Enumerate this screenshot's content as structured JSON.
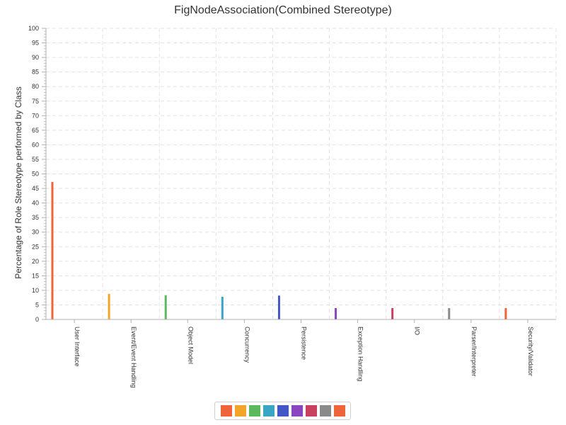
{
  "chart_data": {
    "type": "bar",
    "title": "FigNodeAssociation(Combined Stereotype)",
    "xlabel": "",
    "ylabel": "Percentage of Role Stereotype performed by Class",
    "ylim": [
      0,
      100
    ],
    "y_major_step": 5,
    "y_minor_step": 1,
    "grid": true,
    "legend_position": "bottom",
    "categories": [
      "User Interface",
      "Event/Event Handling",
      "Object Model",
      "Concurrency",
      "Persistence",
      "Exception Handling",
      "I/O",
      "Parser/Interpreter",
      "Security/Validator"
    ],
    "values": [
      47.2,
      8.8,
      8.3,
      7.8,
      8.2,
      3.9,
      3.9,
      3.9,
      3.9
    ],
    "colors": [
      "#f0643a",
      "#f5a42a",
      "#5cb85c",
      "#3ba6c4",
      "#4457c7",
      "#8c45c1",
      "#c9415e",
      "#8a8a8a",
      "#f0643a"
    ]
  }
}
